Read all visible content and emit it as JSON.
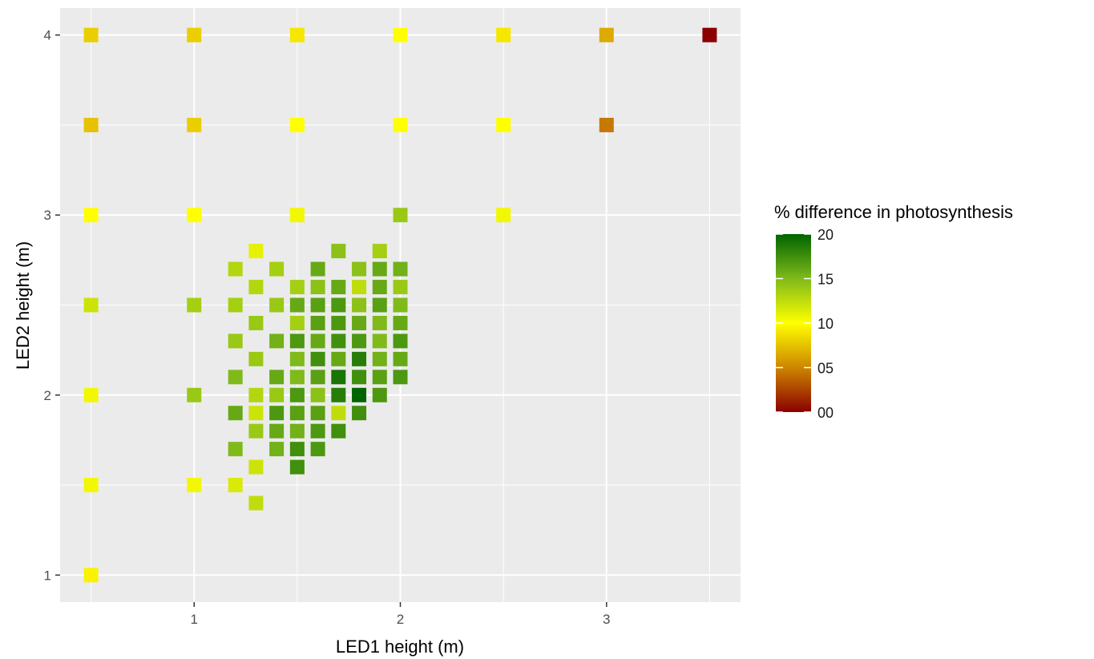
{
  "chart_data": {
    "type": "heatmap",
    "title": "",
    "xlabel": "LED1 height (m)",
    "ylabel": "LED2 height (m)",
    "xlim": [
      0.35,
      3.65
    ],
    "ylim": [
      0.85,
      4.15
    ],
    "x_ticks": [
      1,
      2,
      3
    ],
    "x_tick_labels": [
      "1",
      "2",
      "3"
    ],
    "y_ticks": [
      1,
      2,
      3,
      4
    ],
    "y_tick_labels": [
      "1",
      "2",
      "3",
      "4"
    ],
    "x_minor": [
      0.5,
      1.5,
      2.5,
      3.5
    ],
    "y_minor": [
      1.5,
      2.5,
      3.5
    ],
    "grid": true,
    "panel_background": "#ebebeb",
    "color_scale": {
      "title": "% difference in photosynthesis",
      "min": 0,
      "max": 20,
      "breaks": [
        0,
        5,
        10,
        15,
        20
      ],
      "break_labels": [
        "00",
        "05",
        "10",
        "15",
        "20"
      ],
      "stops": [
        {
          "value": 0,
          "color": "#8b0000"
        },
        {
          "value": 5,
          "color": "#cd8500"
        },
        {
          "value": 10,
          "color": "#ffff00"
        },
        {
          "value": 15,
          "color": "#7fba1a"
        },
        {
          "value": 20,
          "color": "#006400"
        }
      ]
    },
    "legend_position": "right",
    "points": [
      {
        "x": 0.5,
        "y": 4.0,
        "v": 8
      },
      {
        "x": 1.0,
        "y": 4.0,
        "v": 8
      },
      {
        "x": 1.5,
        "y": 4.0,
        "v": 9
      },
      {
        "x": 2.0,
        "y": 4.0,
        "v": 10
      },
      {
        "x": 2.5,
        "y": 4.0,
        "v": 9
      },
      {
        "x": 3.0,
        "y": 4.0,
        "v": 6.5
      },
      {
        "x": 3.5,
        "y": 4.0,
        "v": 0
      },
      {
        "x": 0.5,
        "y": 3.5,
        "v": 7.5
      },
      {
        "x": 1.0,
        "y": 3.5,
        "v": 8
      },
      {
        "x": 1.5,
        "y": 3.5,
        "v": 10
      },
      {
        "x": 2.0,
        "y": 3.5,
        "v": 10
      },
      {
        "x": 2.5,
        "y": 3.5,
        "v": 10
      },
      {
        "x": 3.0,
        "y": 3.5,
        "v": 4.5
      },
      {
        "x": 0.5,
        "y": 3.0,
        "v": 10
      },
      {
        "x": 1.0,
        "y": 3.0,
        "v": 10
      },
      {
        "x": 1.5,
        "y": 3.0,
        "v": 10.5
      },
      {
        "x": 2.0,
        "y": 3.0,
        "v": 14
      },
      {
        "x": 2.5,
        "y": 3.0,
        "v": 10.5
      },
      {
        "x": 0.5,
        "y": 2.5,
        "v": 12
      },
      {
        "x": 1.0,
        "y": 2.5,
        "v": 13.5
      },
      {
        "x": 0.5,
        "y": 2.0,
        "v": 10.5
      },
      {
        "x": 1.0,
        "y": 2.0,
        "v": 14
      },
      {
        "x": 0.5,
        "y": 1.5,
        "v": 10.5
      },
      {
        "x": 1.0,
        "y": 1.5,
        "v": 10.5
      },
      {
        "x": 0.5,
        "y": 1.0,
        "v": 9.5
      },
      {
        "x": 1.3,
        "y": 2.8,
        "v": 11
      },
      {
        "x": 1.7,
        "y": 2.8,
        "v": 14.5
      },
      {
        "x": 1.9,
        "y": 2.8,
        "v": 13.5
      },
      {
        "x": 1.2,
        "y": 2.7,
        "v": 13
      },
      {
        "x": 1.4,
        "y": 2.7,
        "v": 13.5
      },
      {
        "x": 1.6,
        "y": 2.7,
        "v": 16
      },
      {
        "x": 1.8,
        "y": 2.7,
        "v": 14.5
      },
      {
        "x": 1.9,
        "y": 2.7,
        "v": 16
      },
      {
        "x": 2.0,
        "y": 2.7,
        "v": 15.5
      },
      {
        "x": 1.3,
        "y": 2.6,
        "v": 13
      },
      {
        "x": 1.5,
        "y": 2.6,
        "v": 13.5
      },
      {
        "x": 1.6,
        "y": 2.6,
        "v": 14.5
      },
      {
        "x": 1.7,
        "y": 2.6,
        "v": 16
      },
      {
        "x": 1.8,
        "y": 2.6,
        "v": 12.5
      },
      {
        "x": 1.9,
        "y": 2.6,
        "v": 16
      },
      {
        "x": 2.0,
        "y": 2.6,
        "v": 14
      },
      {
        "x": 1.2,
        "y": 2.5,
        "v": 13.5
      },
      {
        "x": 1.4,
        "y": 2.5,
        "v": 14
      },
      {
        "x": 1.5,
        "y": 2.5,
        "v": 16
      },
      {
        "x": 1.6,
        "y": 2.5,
        "v": 16.5
      },
      {
        "x": 1.7,
        "y": 2.5,
        "v": 17
      },
      {
        "x": 1.8,
        "y": 2.5,
        "v": 14.5
      },
      {
        "x": 1.9,
        "y": 2.5,
        "v": 16.5
      },
      {
        "x": 2.0,
        "y": 2.5,
        "v": 15
      },
      {
        "x": 1.3,
        "y": 2.4,
        "v": 14
      },
      {
        "x": 1.5,
        "y": 2.4,
        "v": 13.5
      },
      {
        "x": 1.6,
        "y": 2.4,
        "v": 16.5
      },
      {
        "x": 1.7,
        "y": 2.4,
        "v": 17
      },
      {
        "x": 1.8,
        "y": 2.4,
        "v": 16
      },
      {
        "x": 1.9,
        "y": 2.4,
        "v": 15
      },
      {
        "x": 2.0,
        "y": 2.4,
        "v": 16
      },
      {
        "x": 1.2,
        "y": 2.3,
        "v": 14
      },
      {
        "x": 1.4,
        "y": 2.3,
        "v": 15.5
      },
      {
        "x": 1.5,
        "y": 2.3,
        "v": 17
      },
      {
        "x": 1.6,
        "y": 2.3,
        "v": 16
      },
      {
        "x": 1.7,
        "y": 2.3,
        "v": 17.5
      },
      {
        "x": 1.8,
        "y": 2.3,
        "v": 17
      },
      {
        "x": 1.9,
        "y": 2.3,
        "v": 15
      },
      {
        "x": 2.0,
        "y": 2.3,
        "v": 17
      },
      {
        "x": 1.3,
        "y": 2.2,
        "v": 14
      },
      {
        "x": 1.5,
        "y": 2.2,
        "v": 15
      },
      {
        "x": 1.6,
        "y": 2.2,
        "v": 17.5
      },
      {
        "x": 1.7,
        "y": 2.2,
        "v": 16
      },
      {
        "x": 1.8,
        "y": 2.2,
        "v": 18.5
      },
      {
        "x": 1.9,
        "y": 2.2,
        "v": 15.5
      },
      {
        "x": 2.0,
        "y": 2.2,
        "v": 16
      },
      {
        "x": 1.2,
        "y": 2.1,
        "v": 15
      },
      {
        "x": 1.4,
        "y": 2.1,
        "v": 16
      },
      {
        "x": 1.5,
        "y": 2.1,
        "v": 15
      },
      {
        "x": 1.6,
        "y": 2.1,
        "v": 16.5
      },
      {
        "x": 1.7,
        "y": 2.1,
        "v": 19
      },
      {
        "x": 1.8,
        "y": 2.1,
        "v": 17.5
      },
      {
        "x": 1.9,
        "y": 2.1,
        "v": 16.5
      },
      {
        "x": 2.0,
        "y": 2.1,
        "v": 17
      },
      {
        "x": 1.3,
        "y": 2.0,
        "v": 13
      },
      {
        "x": 1.4,
        "y": 2.0,
        "v": 14
      },
      {
        "x": 1.5,
        "y": 2.0,
        "v": 17
      },
      {
        "x": 1.6,
        "y": 2.0,
        "v": 14.5
      },
      {
        "x": 1.7,
        "y": 2.0,
        "v": 18.5
      },
      {
        "x": 1.8,
        "y": 2.0,
        "v": 20
      },
      {
        "x": 1.9,
        "y": 2.0,
        "v": 17
      },
      {
        "x": 1.2,
        "y": 1.9,
        "v": 16
      },
      {
        "x": 1.3,
        "y": 1.9,
        "v": 12
      },
      {
        "x": 1.4,
        "y": 1.9,
        "v": 17
      },
      {
        "x": 1.5,
        "y": 1.9,
        "v": 16.5
      },
      {
        "x": 1.6,
        "y": 1.9,
        "v": 16.5
      },
      {
        "x": 1.7,
        "y": 1.9,
        "v": 12.5
      },
      {
        "x": 1.8,
        "y": 1.9,
        "v": 17.5
      },
      {
        "x": 1.3,
        "y": 1.8,
        "v": 14
      },
      {
        "x": 1.4,
        "y": 1.8,
        "v": 16
      },
      {
        "x": 1.5,
        "y": 1.8,
        "v": 15.5
      },
      {
        "x": 1.6,
        "y": 1.8,
        "v": 17
      },
      {
        "x": 1.7,
        "y": 1.8,
        "v": 17.5
      },
      {
        "x": 1.2,
        "y": 1.7,
        "v": 15
      },
      {
        "x": 1.4,
        "y": 1.7,
        "v": 15.5
      },
      {
        "x": 1.5,
        "y": 1.7,
        "v": 17.5
      },
      {
        "x": 1.6,
        "y": 1.7,
        "v": 17
      },
      {
        "x": 1.3,
        "y": 1.6,
        "v": 12
      },
      {
        "x": 1.5,
        "y": 1.6,
        "v": 17.5
      },
      {
        "x": 1.2,
        "y": 1.5,
        "v": 11.5
      },
      {
        "x": 1.3,
        "y": 1.4,
        "v": 12.5
      }
    ]
  }
}
